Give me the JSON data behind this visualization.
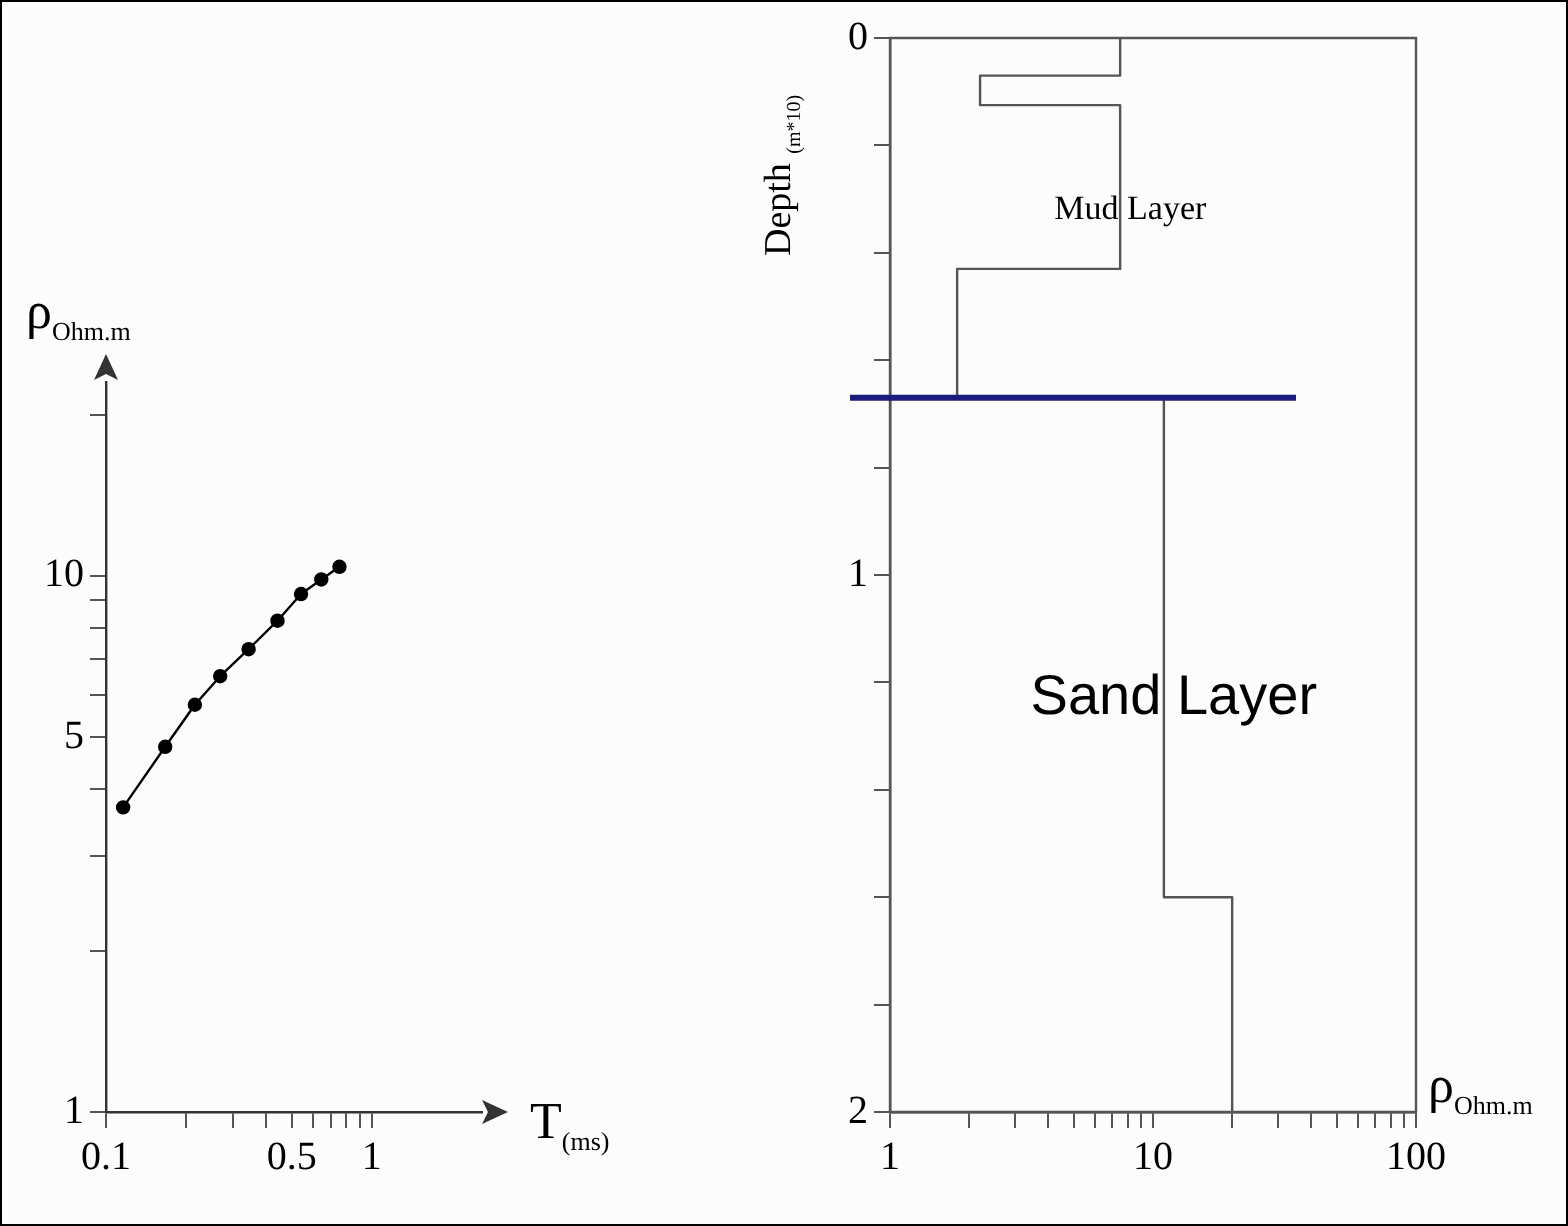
{
  "chart_data": [
    {
      "type": "line",
      "xlabel": "T$_{(ms)}$",
      "ylabel": "ρ$_{Ohm.m}$",
      "log": "xy",
      "marker": "circle",
      "grid": false,
      "legend": false,
      "color": "#000000",
      "x": [
        0.116,
        0.167,
        0.216,
        0.269,
        0.344,
        0.442,
        0.542,
        0.646,
        0.756
      ],
      "values": [
        3.7,
        4.8,
        5.75,
        6.5,
        7.3,
        8.25,
        9.25,
        9.85,
        10.4
      ],
      "xlim": [
        0.1,
        2.6
      ],
      "ylim": [
        1,
        23
      ],
      "xticks": [
        0.1,
        {
          "value": 0.2,
          "label": null
        },
        {
          "value": 0.3,
          "label": null
        },
        {
          "value": 0.4,
          "label": null
        },
        0.5,
        {
          "value": 0.6,
          "label": null
        },
        {
          "value": 0.7,
          "label": null
        },
        {
          "value": 0.8,
          "label": null
        },
        {
          "value": 0.9,
          "label": null
        },
        1
      ],
      "yticks": [
        1,
        {
          "value": 2,
          "label": null
        },
        {
          "value": 3,
          "label": null
        },
        {
          "value": 4,
          "label": null
        },
        5,
        {
          "value": 6,
          "label": null
        },
        {
          "value": 7,
          "label": null
        },
        {
          "value": 8,
          "label": null
        },
        {
          "value": 9,
          "label": null
        },
        10,
        {
          "value": 20,
          "label": null
        }
      ]
    },
    {
      "type": "line",
      "xlabel": "ρ$_{Ohm.m}$",
      "ylabel": "Depth $_{(m*10)}$",
      "log": "x",
      "marker": "none",
      "grid": false,
      "legend": false,
      "color": "#555555",
      "x": [
        7.5,
        7.5,
        2.2,
        2.2,
        7.5,
        7.5,
        1.8,
        1.8,
        11,
        11,
        20,
        20
      ],
      "values": [
        0,
        0.07,
        0.07,
        0.125,
        0.125,
        0.43,
        0.43,
        0.67,
        0.67,
        1.6,
        1.6,
        2
      ],
      "xlim": [
        1,
        100
      ],
      "ylim": [
        2,
        0
      ],
      "xticks": [
        1,
        {
          "value": 2,
          "label": null
        },
        {
          "value": 3,
          "label": null
        },
        {
          "value": 4,
          "label": null
        },
        {
          "value": 5,
          "label": null
        },
        {
          "value": 6,
          "label": null
        },
        {
          "value": 7,
          "label": null
        },
        {
          "value": 8,
          "label": null
        },
        {
          "value": 9,
          "label": null
        },
        10,
        {
          "value": 20,
          "label": null
        },
        {
          "value": 30,
          "label": null
        },
        {
          "value": 40,
          "label": null
        },
        {
          "value": 50,
          "label": null
        },
        {
          "value": 60,
          "label": null
        },
        {
          "value": 70,
          "label": null
        },
        {
          "value": 80,
          "label": null
        },
        {
          "value": 90,
          "label": null
        },
        100
      ],
      "yticks": [
        0,
        {
          "value": 0.2,
          "label": null
        },
        {
          "value": 0.4,
          "label": null
        },
        {
          "value": 0.6,
          "label": null
        },
        {
          "value": 0.8,
          "label": null
        },
        1,
        {
          "value": 1.2,
          "label": null
        },
        {
          "value": 1.4,
          "label": null
        },
        {
          "value": 1.6,
          "label": null
        },
        {
          "value": 1.8,
          "label": null
        },
        2
      ],
      "ref_lines": [
        {
          "axis": "y",
          "value": 0.67,
          "color": "#1c1c7c"
        }
      ],
      "annotations": [
        {
          "text": "Mud Layer",
          "x": 8.2,
          "y": 0.32
        },
        {
          "text": "Sand Layer",
          "x": 12,
          "y": 1.23
        }
      ]
    }
  ]
}
